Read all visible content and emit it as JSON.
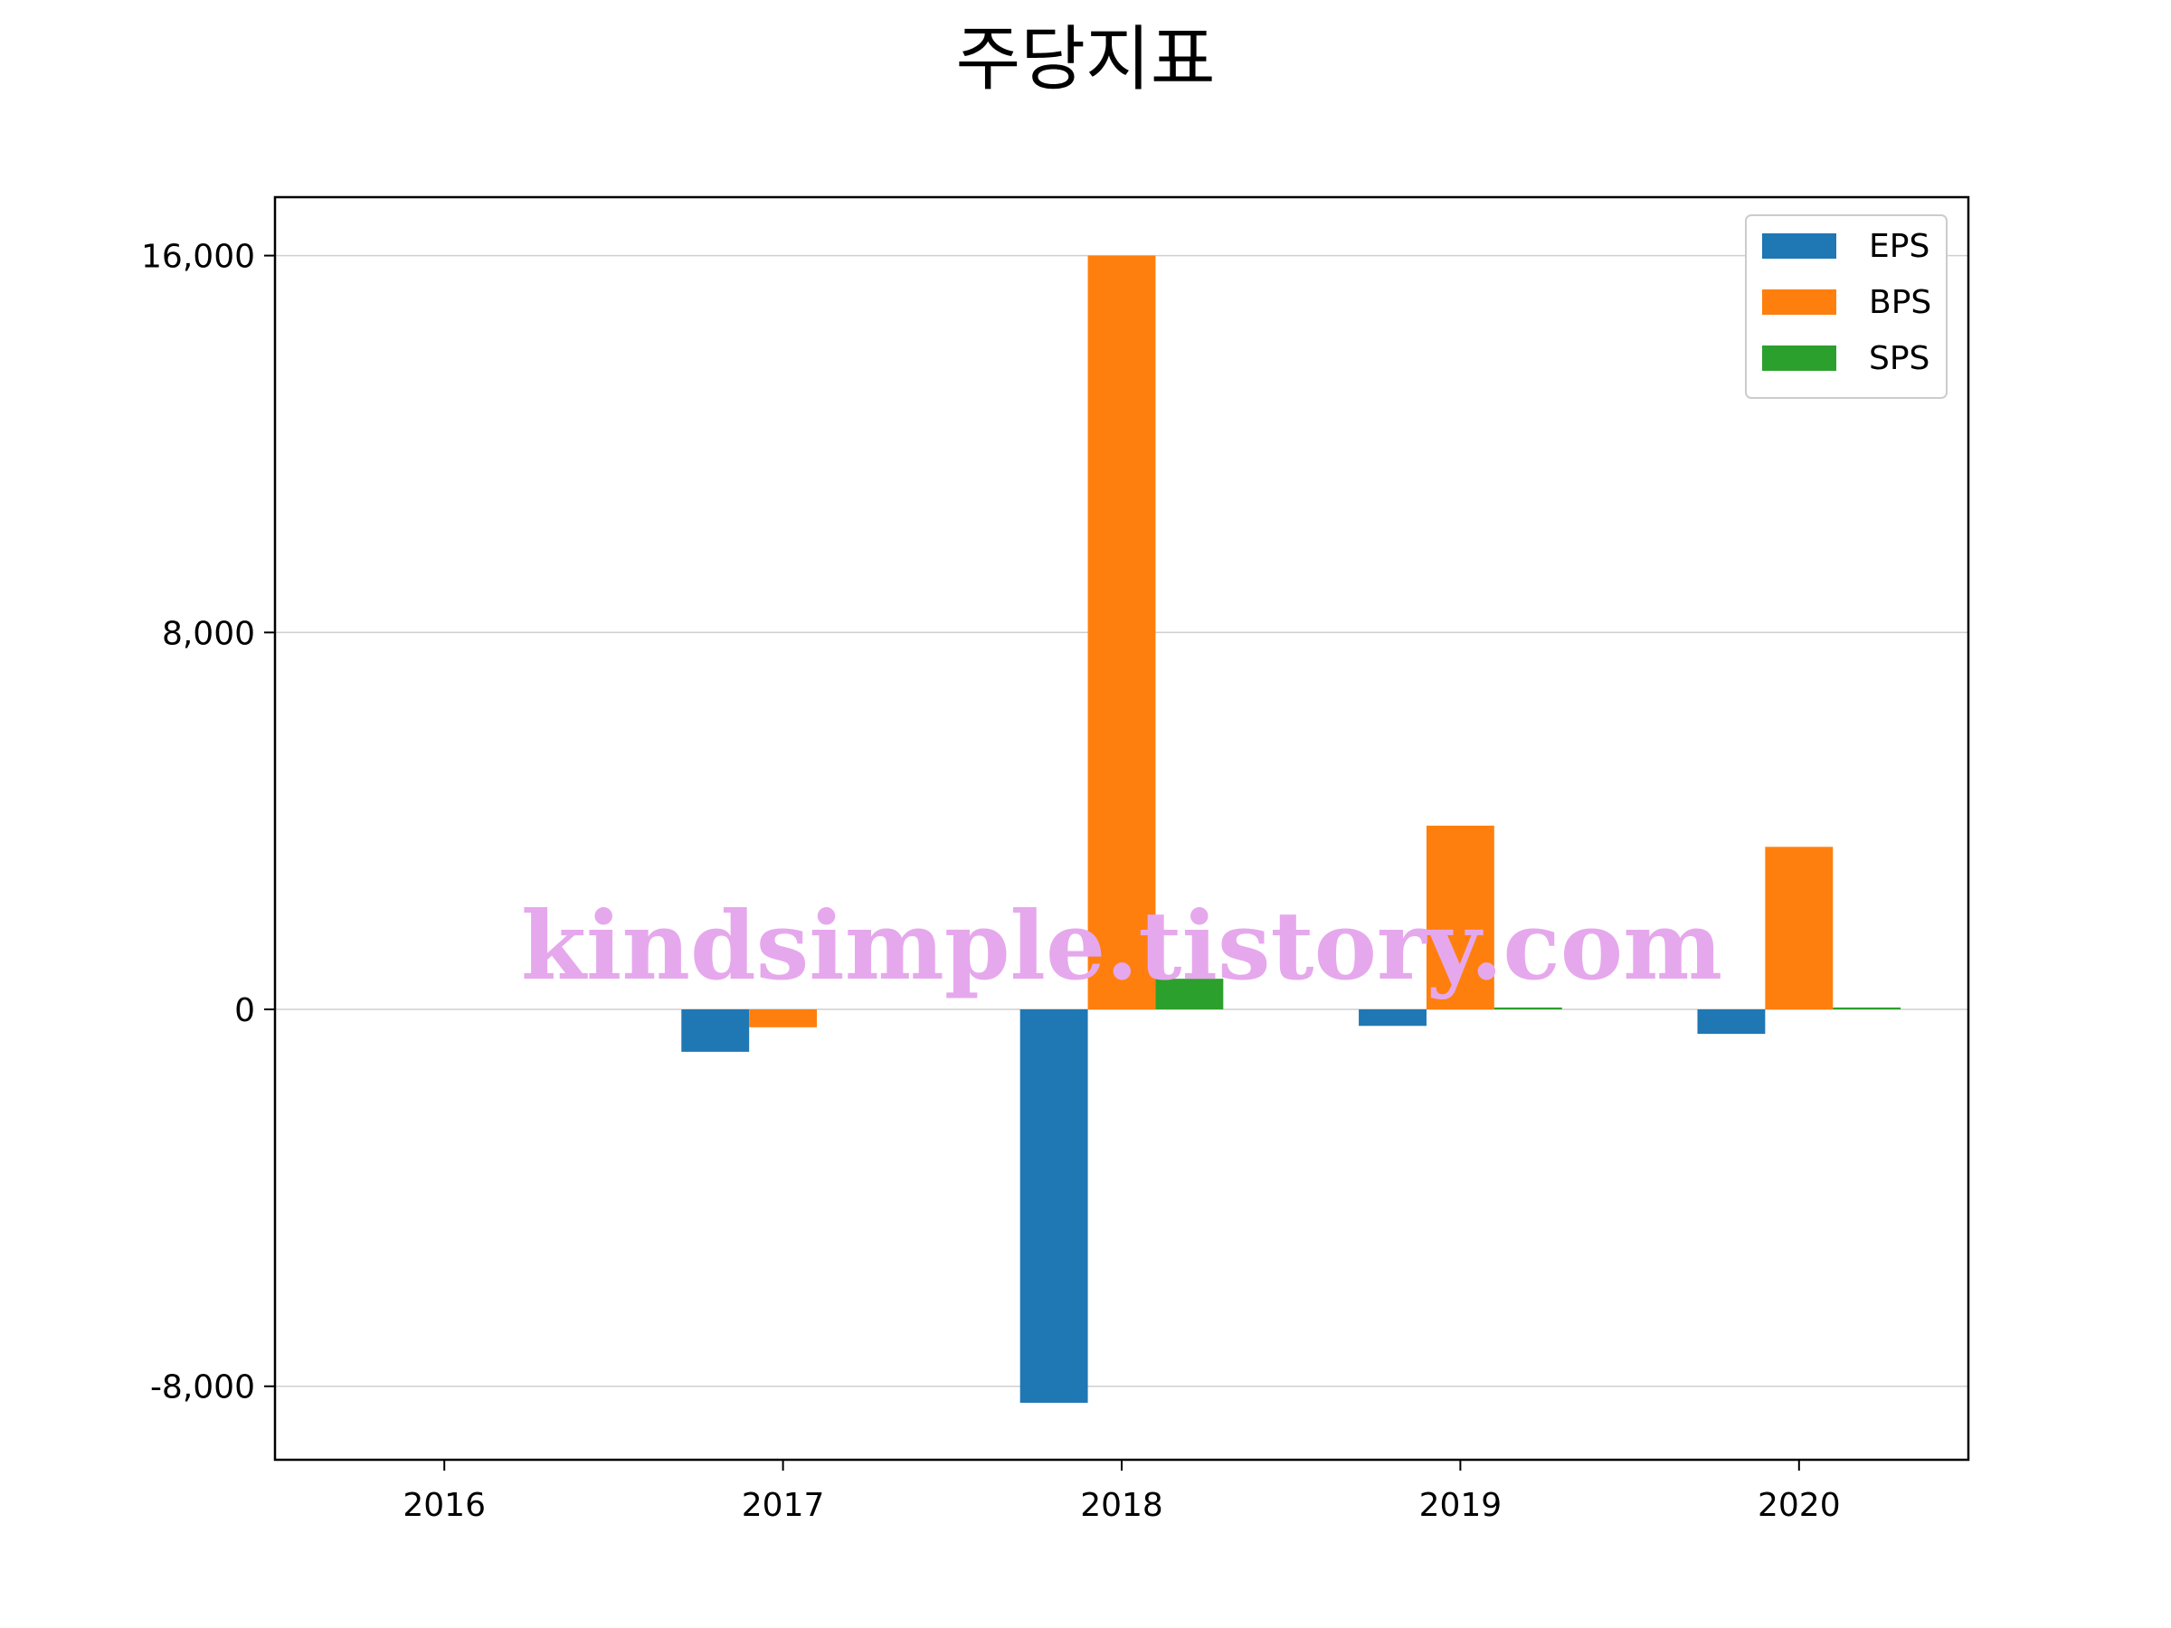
{
  "chart_data": {
    "type": "bar",
    "title": "주당지표",
    "xlabel": "",
    "ylabel": "",
    "categories": [
      "2016",
      "2017",
      "2018",
      "2019",
      "2020"
    ],
    "series": [
      {
        "name": "EPS",
        "color": "#1f77b4",
        "values": [
          0,
          -900,
          -8350,
          -350,
          -520
        ]
      },
      {
        "name": "BPS",
        "color": "#ff7f0e",
        "values": [
          0,
          -380,
          16000,
          3900,
          3450
        ]
      },
      {
        "name": "SPS",
        "color": "#2ca02c",
        "values": [
          0,
          0,
          650,
          40,
          40
        ]
      }
    ],
    "yticks": [
      -8000,
      0,
      8000,
      16000
    ],
    "ytick_labels": [
      "-8,000",
      "0",
      "8,000",
      "16,000"
    ],
    "ylim": [
      -9560,
      17240
    ],
    "grid": "y",
    "legend": "top-right",
    "watermark": "kindsimple.tistory.com",
    "watermark_color": "#e6a8ec"
  }
}
